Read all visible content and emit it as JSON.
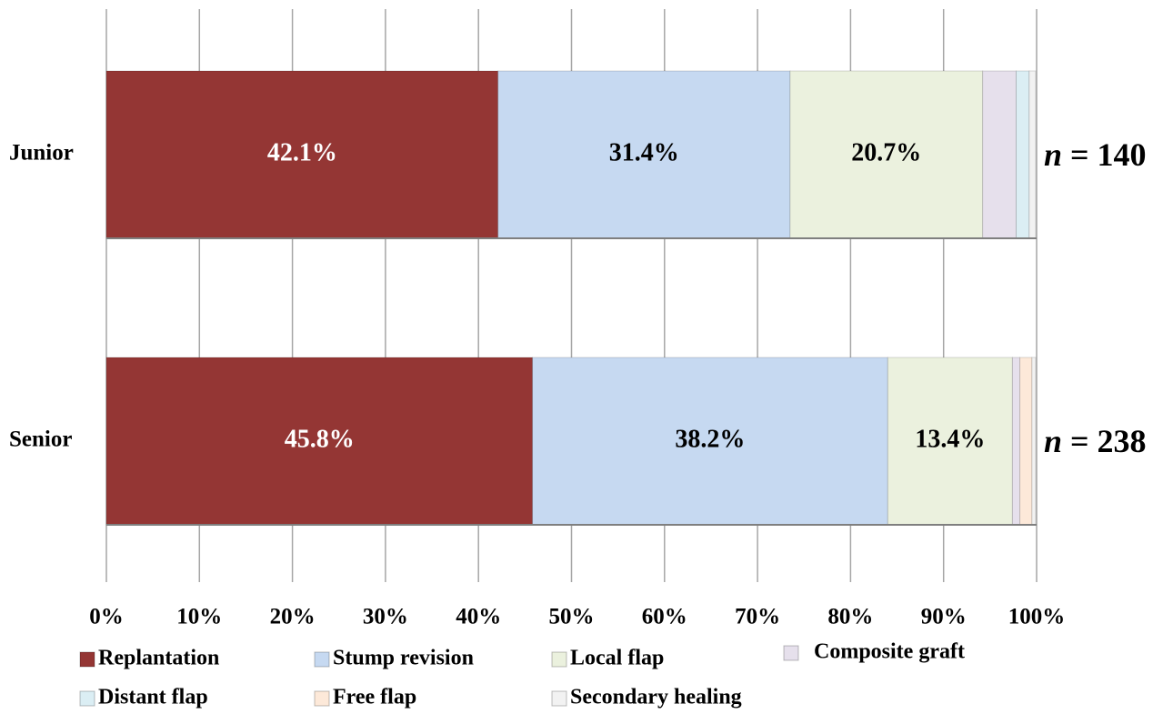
{
  "chart_data": {
    "type": "stacked-barh",
    "categories": [
      "Junior",
      "Senior"
    ],
    "series": [
      {
        "name": "Replantation",
        "color": "#943634",
        "label_color": "#ffffff",
        "values": [
          42.1,
          45.8
        ],
        "value_labels": [
          "42.1%",
          "45.8%"
        ]
      },
      {
        "name": "Stump revision",
        "color": "#c6d9f1",
        "label_color": "#000000",
        "values": [
          31.4,
          38.2
        ],
        "value_labels": [
          "31.4%",
          "38.2%"
        ]
      },
      {
        "name": "Local flap",
        "color": "#ebf1de",
        "label_color": "#000000",
        "values": [
          20.7,
          13.4
        ],
        "value_labels": [
          "20.7%",
          "13.4%"
        ]
      },
      {
        "name": "Composite graft",
        "color": "#e6e0ec",
        "values": [
          3.6,
          0.8
        ],
        "value_labels": [
          null,
          null
        ]
      },
      {
        "name": "Distant flap",
        "color": "#dbeef4",
        "values": [
          1.4,
          0
        ],
        "value_labels": [
          null,
          null
        ]
      },
      {
        "name": "Free flap",
        "color": "#fde9d9",
        "values": [
          0,
          1.3
        ],
        "value_labels": [
          null,
          null
        ]
      },
      {
        "name": "Secondary healing",
        "color": "#f2f2f2",
        "values": [
          0.7,
          0.4
        ],
        "value_labels": [
          null,
          null
        ]
      }
    ],
    "annotations": [
      {
        "symbol": "n",
        "text": " = 140"
      },
      {
        "symbol": "n",
        "text": " = 238"
      }
    ],
    "xlim": [
      0,
      100
    ],
    "xticks": [
      {
        "value": 0,
        "label": "0%"
      },
      {
        "value": 10,
        "label": "10%"
      },
      {
        "value": 20,
        "label": "20%"
      },
      {
        "value": 30,
        "label": "30%"
      },
      {
        "value": 40,
        "label": "40%"
      },
      {
        "value": 50,
        "label": "50%"
      },
      {
        "value": 60,
        "label": "60%"
      },
      {
        "value": 70,
        "label": "70%"
      },
      {
        "value": 80,
        "label": "80%"
      },
      {
        "value": 90,
        "label": "90%"
      },
      {
        "value": 100,
        "label": "100%"
      }
    ],
    "grid": true
  }
}
